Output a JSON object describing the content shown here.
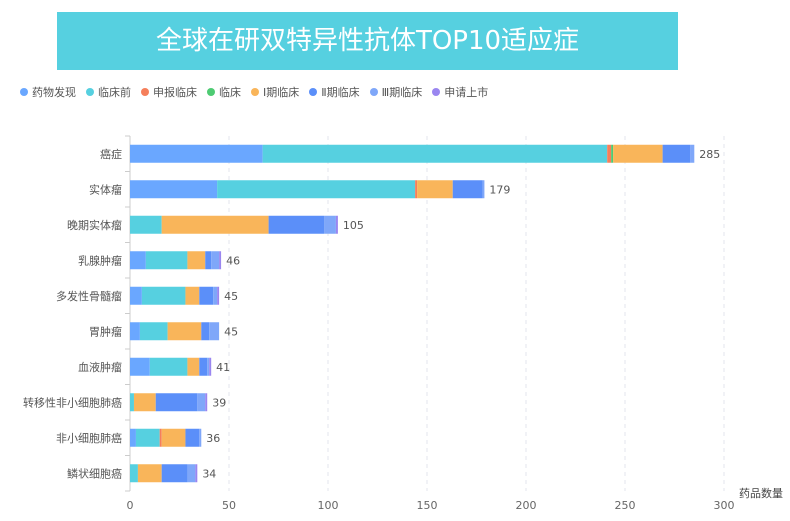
{
  "chart_data": {
    "type": "bar",
    "orientation": "horizontal",
    "stacked": true,
    "title": "全球在研双特异性抗体TOP10适应症",
    "xlabel": "药品数量",
    "xlim": [
      0,
      300
    ],
    "xticks": [
      0,
      50,
      100,
      150,
      200,
      250,
      300
    ],
    "grid": true,
    "legend_position": "top-left",
    "categories": [
      "癌症",
      "实体瘤",
      "晚期实体瘤",
      "乳腺肿瘤",
      "多发性骨髓瘤",
      "胃肿瘤",
      "血液肿瘤",
      "转移性非小细胞肺癌",
      "非小细胞肺癌",
      "鳞状细胞癌"
    ],
    "totals": [
      285,
      179,
      105,
      46,
      45,
      45,
      41,
      39,
      36,
      34
    ],
    "series": [
      {
        "name": "药物发现",
        "color": "#6aa7ff",
        "values": [
          67,
          44,
          0,
          8,
          6,
          5,
          10,
          0,
          3,
          0
        ]
      },
      {
        "name": "临床前",
        "color": "#56d0e0",
        "values": [
          174,
          100,
          16,
          21,
          22,
          14,
          19,
          2,
          12,
          4
        ]
      },
      {
        "name": "申报临床",
        "color": "#f57f5b",
        "values": [
          2,
          1,
          0,
          0,
          0,
          0,
          0,
          0,
          1,
          0
        ]
      },
      {
        "name": "临床",
        "color": "#4ecb73",
        "values": [
          1,
          0,
          0,
          0,
          0,
          0,
          0,
          0,
          0,
          0
        ]
      },
      {
        "name": "Ⅰ期临床",
        "color": "#f9b55a",
        "values": [
          25,
          18,
          54,
          9,
          7,
          17,
          6,
          11,
          12,
          12
        ]
      },
      {
        "name": "Ⅱ期临床",
        "color": "#5b8ff9",
        "values": [
          14,
          15,
          28,
          3,
          7,
          4,
          4,
          21,
          7,
          13
        ]
      },
      {
        "name": "Ⅲ期临床",
        "color": "#7fa7f9",
        "values": [
          2,
          1,
          6,
          4,
          2,
          5,
          1,
          4,
          1,
          4
        ]
      },
      {
        "name": "申请上市",
        "color": "#9a86f0",
        "values": [
          0,
          0,
          1,
          1,
          1,
          0,
          1,
          1,
          0,
          1
        ]
      }
    ]
  }
}
